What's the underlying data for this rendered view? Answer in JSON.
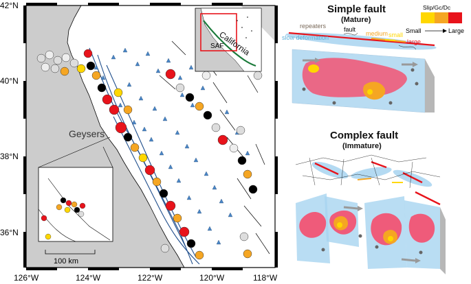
{
  "map": {
    "lat_labels": [
      "42°N",
      "40°N",
      "38°N",
      "36°N"
    ],
    "lon_labels": [
      "126°W",
      "124°W",
      "122°W",
      "120°W",
      "118°W"
    ],
    "geysers_label": "Geysers",
    "scale_label": "100 km",
    "inset": {
      "state_label": "California",
      "fault_label": "SAF"
    }
  },
  "legend": {
    "title": "Slip/Gc/Dc",
    "small": "Small",
    "large": "Large",
    "colors": [
      "#ffd700",
      "#f5a623",
      "#e8131b"
    ]
  },
  "simple_fault": {
    "title": "Simple fault",
    "subtitle": "(Mature)",
    "labels": {
      "repeaters": "repeaters",
      "fault": "fault",
      "medium": "medium",
      "small": "small",
      "large": "large",
      "slow": "slow deformation"
    }
  },
  "complex_fault": {
    "title": "Complex fault",
    "subtitle": "(Immature)"
  },
  "colors": {
    "land": "#ffffff",
    "ocean": "#cccccc",
    "fault_blue": "#1f4e8c",
    "station": "#4a86c5",
    "shade_blue": "#a8d4f0",
    "slip_red": "#e8131b"
  }
}
